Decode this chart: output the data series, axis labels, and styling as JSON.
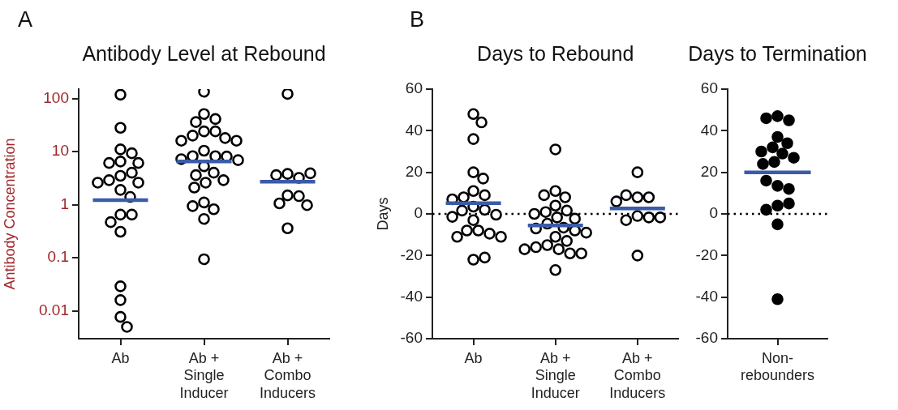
{
  "chart_data": [
    {
      "type": "scatter",
      "title": "Antibody Level at Rebound",
      "ylabel": "Antibody Concentration",
      "annotations": [
        "A"
      ],
      "log": "y",
      "categories": [
        "Ab",
        "Ab +\nSingle\nInducer",
        "Ab +\nCombo\nInducers"
      ],
      "ylim": [
        0.003,
        150
      ],
      "yticks": [
        0.01,
        0.1,
        1,
        10,
        100
      ],
      "marker": "circle",
      "series": [
        {
          "color": "#000000",
          "x": [
            "Ab",
            "Ab",
            "Ab",
            "Ab",
            "Ab",
            "Ab",
            "Ab",
            "Ab",
            "Ab",
            "Ab",
            "Ab",
            "Ab",
            "Ab",
            "Ab",
            "Ab",
            "Ab",
            "Ab",
            "Ab",
            "Ab",
            "Ab",
            "Ab",
            "Ab",
            "Ab +\nSingle\nInducer",
            "Ab +\nSingle\nInducer",
            "Ab +\nSingle\nInducer",
            "Ab +\nSingle\nInducer",
            "Ab +\nSingle\nInducer",
            "Ab +\nSingle\nInducer",
            "Ab +\nSingle\nInducer",
            "Ab +\nSingle\nInducer",
            "Ab +\nSingle\nInducer",
            "Ab +\nSingle\nInducer",
            "Ab +\nSingle\nInducer",
            "Ab +\nSingle\nInducer",
            "Ab +\nSingle\nInducer",
            "Ab +\nSingle\nInducer",
            "Ab +\nSingle\nInducer",
            "Ab +\nSingle\nInducer",
            "Ab +\nSingle\nInducer",
            "Ab +\nSingle\nInducer",
            "Ab +\nSingle\nInducer",
            "Ab +\nSingle\nInducer",
            "Ab +\nSingle\nInducer",
            "Ab +\nSingle\nInducer",
            "Ab +\nSingle\nInducer",
            "Ab +\nSingle\nInducer",
            "Ab +\nSingle\nInducer",
            "Ab +\nSingle\nInducer",
            "Ab +\nSingle\nInducer",
            "Ab +\nCombo\nInducers",
            "Ab +\nCombo\nInducers",
            "Ab +\nCombo\nInducers",
            "Ab +\nCombo\nInducers",
            "Ab +\nCombo\nInducers",
            "Ab +\nCombo\nInducers",
            "Ab +\nCombo\nInducers",
            "Ab +\nCombo\nInducers",
            "Ab +\nCombo\nInducers",
            "Ab +\nCombo\nInducers"
          ],
          "values": [
            118,
            28,
            11,
            9.3,
            6.5,
            6.1,
            6.1,
            3.5,
            4,
            2.9,
            2.6,
            2.6,
            1.9,
            1.4,
            0.65,
            0.65,
            0.47,
            0.31,
            0.029,
            0.016,
            0.0077,
            0.005,
            134,
            51,
            41,
            36,
            24,
            24,
            20,
            18,
            16,
            16,
            10.4,
            8.2,
            8.2,
            8.1,
            7.2,
            6.9,
            5.3,
            4,
            3.6,
            2.9,
            2.6,
            2.1,
            1.1,
            0.82,
            0.94,
            0.54,
            0.094,
            122,
            3.8,
            3.2,
            3.6,
            3.9,
            1.5,
            1.45,
            1.06,
            0.98,
            0.36
          ]
        },
        {
          "type": "box",
          "color": "#3a5ba8",
          "boxes": [
            {
              "low": 1.22,
              "q1": 1.22,
              "median": 1.22,
              "q3": 1.22,
              "high": 1.22
            },
            {
              "low": 6.5,
              "q1": 6.5,
              "median": 6.5,
              "q3": 6.5,
              "high": 6.5
            },
            {
              "low": 2.7,
              "q1": 2.7,
              "median": 2.7,
              "q3": 2.7,
              "high": 2.7
            }
          ]
        }
      ]
    },
    {
      "type": "scatter",
      "title": "Days to Rebound",
      "ylabel": "Days",
      "annotations": [
        "B"
      ],
      "categories": [
        "Ab",
        "Ab +\nSingle\nInducer",
        "Ab +\nCombo\nInducers"
      ],
      "ylim": [
        -60,
        60
      ],
      "yticks": [
        -60,
        -40,
        -20,
        0,
        20,
        40,
        60
      ],
      "marker": "circle",
      "ref_lines": [
        {
          "axis": "y",
          "value": 0,
          "color": "#000000",
          "line_style": "dotted"
        }
      ],
      "series": [
        {
          "color": "#000000",
          "x": [
            "Ab",
            "Ab",
            "Ab",
            "Ab",
            "Ab",
            "Ab",
            "Ab",
            "Ab",
            "Ab",
            "Ab",
            "Ab",
            "Ab",
            "Ab",
            "Ab",
            "Ab",
            "Ab",
            "Ab",
            "Ab",
            "Ab",
            "Ab",
            "Ab",
            "Ab",
            "Ab +\nSingle\nInducer",
            "Ab +\nSingle\nInducer",
            "Ab +\nSingle\nInducer",
            "Ab +\nSingle\nInducer",
            "Ab +\nSingle\nInducer",
            "Ab +\nSingle\nInducer",
            "Ab +\nSingle\nInducer",
            "Ab +\nSingle\nInducer",
            "Ab +\nSingle\nInducer",
            "Ab +\nSingle\nInducer",
            "Ab +\nSingle\nInducer",
            "Ab +\nSingle\nInducer",
            "Ab +\nSingle\nInducer",
            "Ab +\nSingle\nInducer",
            "Ab +\nSingle\nInducer",
            "Ab +\nSingle\nInducer",
            "Ab +\nSingle\nInducer",
            "Ab +\nSingle\nInducer",
            "Ab +\nSingle\nInducer",
            "Ab +\nSingle\nInducer",
            "Ab +\nSingle\nInducer",
            "Ab +\nSingle\nInducer",
            "Ab +\nSingle\nInducer",
            "Ab +\nSingle\nInducer",
            "Ab +\nCombo\nInducers",
            "Ab +\nCombo\nInducers",
            "Ab +\nCombo\nInducers",
            "Ab +\nCombo\nInducers",
            "Ab +\nCombo\nInducers",
            "Ab +\nCombo\nInducers",
            "Ab +\nCombo\nInducers",
            "Ab +\nCombo\nInducers",
            "Ab +\nCombo\nInducers",
            "Ab +\nCombo\nInducers"
          ],
          "values": [
            48,
            44,
            36,
            20,
            17,
            11,
            9,
            8,
            7,
            3.5,
            2,
            1.6,
            -0.4,
            -1.4,
            -3,
            -8,
            -8,
            -9.5,
            -11,
            -11,
            -22,
            -21,
            31,
            11,
            8,
            9,
            4,
            1.6,
            0.9,
            0,
            -1.7,
            -2.3,
            -4.7,
            -6.6,
            -7,
            -8,
            -9,
            -11,
            -13,
            -15,
            -16,
            -17,
            -19,
            -19,
            -17,
            -27,
            20,
            8,
            8,
            9,
            6,
            -1,
            -1.7,
            -3,
            -1.7,
            -20
          ]
        },
        {
          "type": "box",
          "color": "#3a5ba8",
          "boxes": [
            {
              "low": 5.2,
              "q1": 5.2,
              "median": 5.2,
              "q3": 5.2,
              "high": 5.2
            },
            {
              "low": -5.6,
              "q1": -5.6,
              "median": -5.6,
              "q3": -5.6,
              "high": -5.6
            },
            {
              "low": 2.6,
              "q1": 2.6,
              "median": 2.6,
              "q3": 2.6,
              "high": 2.6
            }
          ]
        }
      ]
    },
    {
      "type": "scatter",
      "title": "Days to Termination",
      "categories": [
        "Non-\nrebounders"
      ],
      "ylim": [
        -60,
        60
      ],
      "yticks": [
        -60,
        -40,
        -20,
        0,
        20,
        40,
        60
      ],
      "marker": "circle",
      "ref_lines": [
        {
          "axis": "y",
          "value": 0,
          "color": "#000000",
          "line_style": "dotted"
        }
      ],
      "series": [
        {
          "color": "#000000",
          "x": [
            "Non-\nrebounders",
            "Non-\nrebounders",
            "Non-\nrebounders",
            "Non-\nrebounders",
            "Non-\nrebounders",
            "Non-\nrebounders",
            "Non-\nrebounders",
            "Non-\nrebounders",
            "Non-\nrebounders",
            "Non-\nrebounders",
            "Non-\nrebounders",
            "Non-\nrebounders",
            "Non-\nrebounders",
            "Non-\nrebounders",
            "Non-\nrebounders",
            "Non-\nrebounders",
            "Non-\nrebounders",
            "Non-\nrebounders",
            "Non-\nrebounders"
          ],
          "values": [
            47,
            45,
            46,
            37,
            34,
            32,
            30,
            29,
            27,
            25,
            24,
            13.5,
            12,
            16,
            4,
            5,
            2,
            -5,
            -41
          ]
        },
        {
          "type": "box",
          "color": "#3a5ba8",
          "boxes": [
            {
              "low": 20,
              "q1": 20,
              "median": 20,
              "q3": 20,
              "high": 20
            }
          ]
        }
      ]
    }
  ]
}
